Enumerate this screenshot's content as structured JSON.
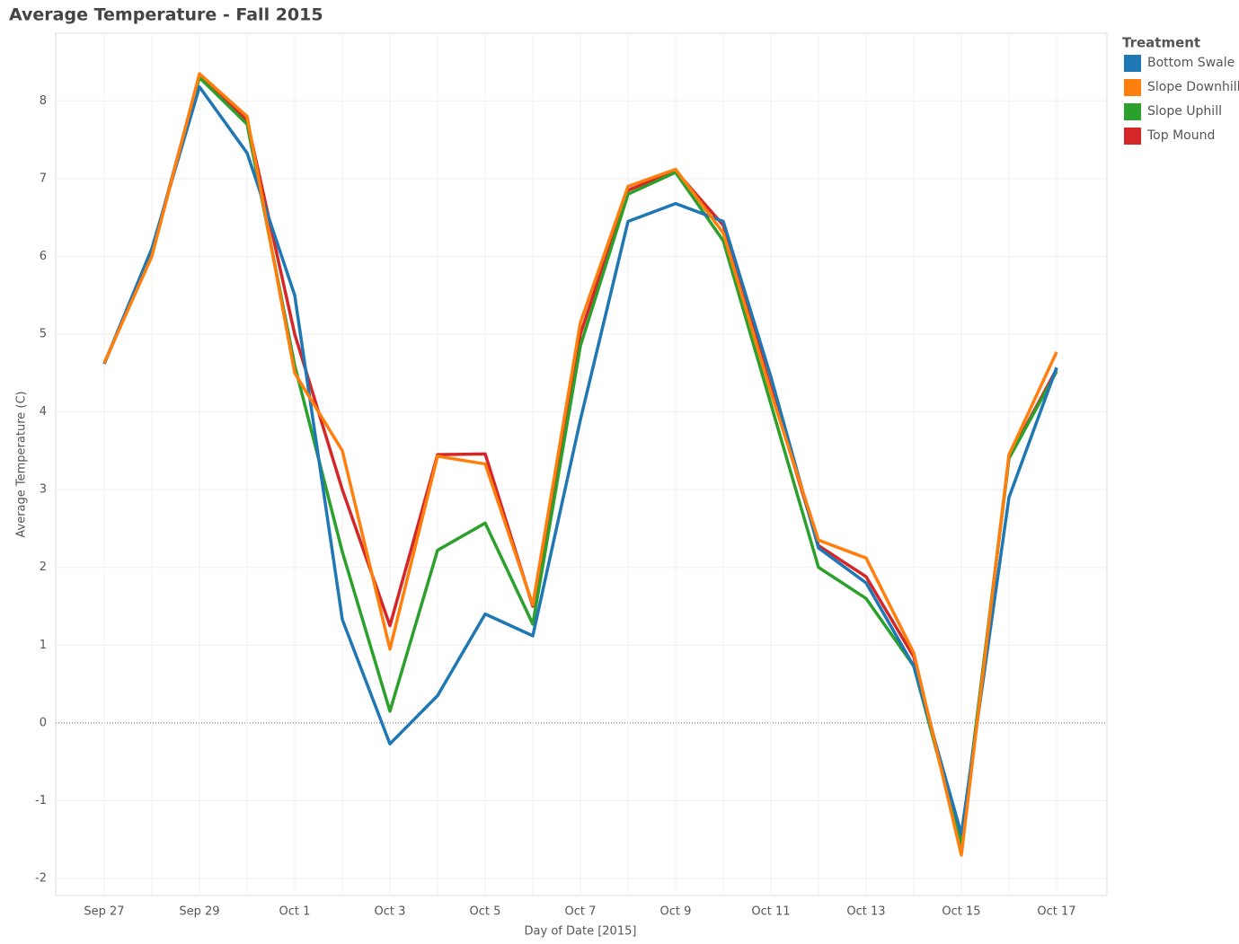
{
  "chart_data": {
    "type": "line",
    "title": "Average Temperature - Fall 2015",
    "x_label": "Day of Date [2015]",
    "y_label": "Average Temperature (C)",
    "legend_title": "Treatment",
    "legend_position": "right",
    "grid": true,
    "categories": [
      "Sep 27",
      null,
      "Sep 29",
      null,
      "Oct 1",
      null,
      "Oct 3",
      null,
      "Oct 5",
      null,
      "Oct 7",
      null,
      "Oct 9",
      null,
      "Oct 11",
      null,
      "Oct 13",
      null,
      "Oct 15",
      null,
      "Oct 17"
    ],
    "ylim": [
      -2.22,
      8.87
    ],
    "yticks": [
      -2,
      -1,
      0,
      1,
      2,
      3,
      4,
      5,
      6,
      7,
      8
    ],
    "series": [
      {
        "name": "Bottom Swale",
        "color": "#1f77b4",
        "values": [
          4.62,
          6.1,
          8.18,
          7.33,
          5.5,
          1.33,
          -0.27,
          0.35,
          1.4,
          1.12,
          3.9,
          6.45,
          6.68,
          6.45,
          4.45,
          2.25,
          1.8,
          0.73,
          -1.43,
          2.9,
          4.57
        ]
      },
      {
        "name": "Slope Downhill",
        "color": "#ff7f0e",
        "values": [
          4.63,
          6.0,
          8.35,
          7.8,
          4.5,
          3.5,
          0.95,
          3.43,
          3.33,
          1.52,
          5.15,
          6.9,
          7.12,
          6.3,
          4.25,
          2.35,
          2.12,
          0.9,
          -1.7,
          3.45,
          4.77
        ]
      },
      {
        "name": "Slope Uphill",
        "color": "#2ca02c",
        "values": [
          4.62,
          6.05,
          8.3,
          7.7,
          4.6,
          2.2,
          0.15,
          2.22,
          2.57,
          1.27,
          4.85,
          6.8,
          7.08,
          6.2,
          4.1,
          2.0,
          1.6,
          0.73,
          -1.55,
          3.4,
          4.52
        ]
      },
      {
        "name": "Top Mound",
        "color": "#d62728",
        "values": [
          4.62,
          6.05,
          8.32,
          7.75,
          5.0,
          3.0,
          1.25,
          3.45,
          3.46,
          1.5,
          5.0,
          6.85,
          7.1,
          6.4,
          4.3,
          2.28,
          1.88,
          0.85,
          -1.6,
          3.42,
          4.55
        ]
      }
    ]
  }
}
